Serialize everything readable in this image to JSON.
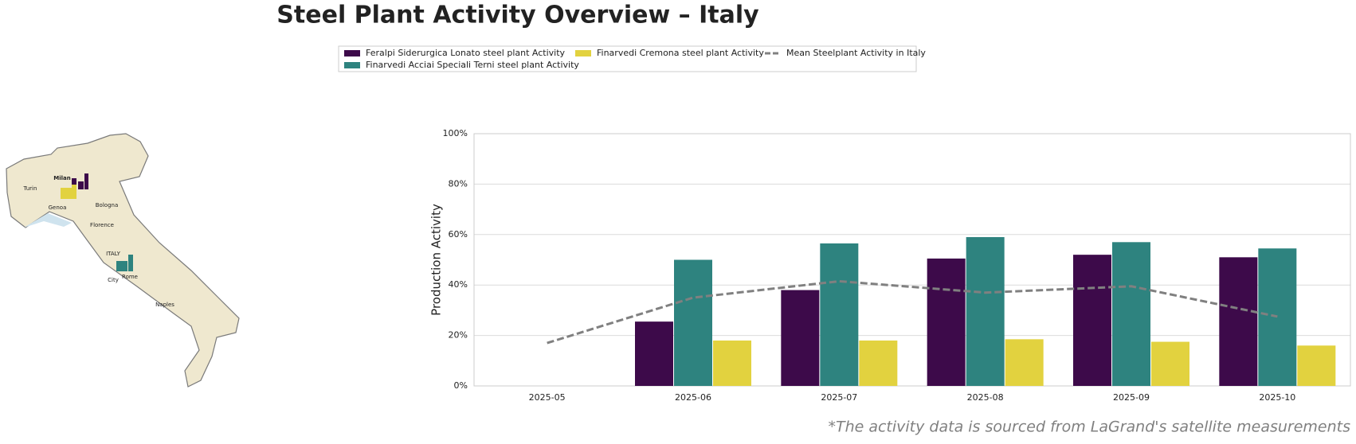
{
  "chart_data": {
    "type": "bar",
    "title": "Steel Plant Activity Overview – Italy",
    "y_label": "Production Activity",
    "footnote": "*The activity data is sourced from LaGrand's satellite measurements",
    "categories": [
      "2025-05",
      "2025-06",
      "2025-07",
      "2025-08",
      "2025-09",
      "2025-10"
    ],
    "series": [
      {
        "name": "Feralpi Siderurgica Lonato steel plant Activity",
        "color": "#3d0a4a",
        "type": "bar",
        "values": [
          null,
          25.5,
          38,
          50.5,
          52,
          51
        ]
      },
      {
        "name": "Finarvedi Acciai Speciali Terni steel plant Activity",
        "color": "#2e837f",
        "type": "bar",
        "values": [
          null,
          50,
          56.5,
          59,
          57,
          54.5
        ]
      },
      {
        "name": "Finarvedi Cremona steel plant Activity",
        "color": "#e2d23f",
        "type": "bar",
        "values": [
          null,
          18,
          18,
          18.5,
          17.5,
          16
        ]
      },
      {
        "name": "Mean Steelplant Activity in Italy",
        "color": "#808080",
        "type": "line",
        "dashed": true,
        "values": [
          17,
          35,
          41.5,
          37,
          39.5,
          27.5
        ]
      }
    ],
    "ylim": [
      0,
      100
    ],
    "yticks": [
      {
        "value": 0,
        "label": "0%"
      },
      {
        "value": 20,
        "label": "20%"
      },
      {
        "value": 40,
        "label": "40%"
      },
      {
        "value": 60,
        "label": "60%"
      },
      {
        "value": 80,
        "label": "80%"
      },
      {
        "value": 100,
        "label": "100%"
      }
    ],
    "grid": true
  },
  "map": {
    "labels": [
      "Milan",
      "Turin",
      "Genoa",
      "Bologna",
      "Florence",
      "ITALY",
      "Rome",
      "City",
      "Naples"
    ]
  }
}
